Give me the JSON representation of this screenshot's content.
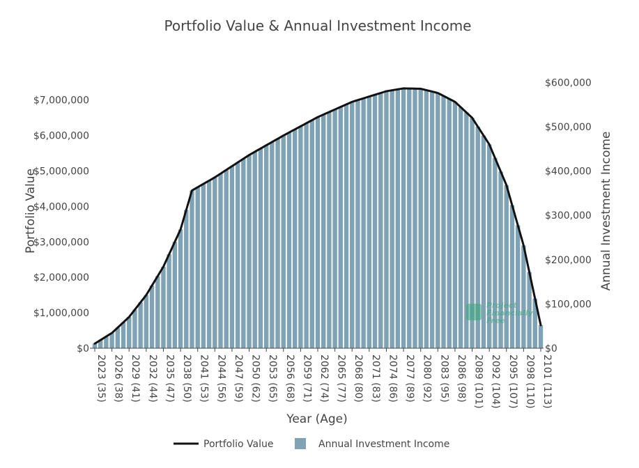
{
  "chart_data": {
    "type": "bar+line",
    "title": "Portfolio Value & Annual Investment Income",
    "xlabel": "Year (Age)",
    "ylabel_left": "Portfolio Value",
    "ylabel_right": "Annual Investment Income",
    "x_start_year": 2023,
    "x_end_year": 2101,
    "start_age": 35,
    "x_tick_labels": [
      "2023 (35)",
      "2026 (38)",
      "2029 (41)",
      "2032 (44)",
      "2035 (47)",
      "2038 (50)",
      "2041 (53)",
      "2044 (56)",
      "2047 (59)",
      "2050 (62)",
      "2053 (65)",
      "2056 (68)",
      "2059 (71)",
      "2062 (74)",
      "2065 (77)",
      "2068 (80)",
      "2071 (83)",
      "2074 (86)",
      "2077 (89)",
      "2080 (92)",
      "2083 (95)",
      "2086 (98)",
      "2089 (101)",
      "2092 (104)",
      "2095 (107)",
      "2098 (110)",
      "2101 (113)"
    ],
    "y_left_ticks": [
      "$0",
      "$1,000,000",
      "$2,000,000",
      "$3,000,000",
      "$4,000,000",
      "$5,000,000",
      "$6,000,000",
      "$7,000,000"
    ],
    "y_right_ticks": [
      "$0",
      "$100,000",
      "$200,000",
      "$300,000",
      "$400,000",
      "$500,000",
      "$600,000"
    ],
    "y_left_range": [
      0,
      7500000
    ],
    "y_right_range": [
      0,
      600000
    ],
    "series": [
      {
        "name": "Portfolio Value",
        "kind": "line",
        "axis": "left",
        "color": "#111111",
        "points": [
          [
            2023,
            130000
          ],
          [
            2026,
            430000
          ],
          [
            2029,
            880000
          ],
          [
            2032,
            1500000
          ],
          [
            2035,
            2300000
          ],
          [
            2038,
            3350000
          ],
          [
            2040,
            4450000
          ],
          [
            2044,
            4820000
          ],
          [
            2050,
            5450000
          ],
          [
            2056,
            6000000
          ],
          [
            2062,
            6520000
          ],
          [
            2068,
            6950000
          ],
          [
            2074,
            7250000
          ],
          [
            2077,
            7330000
          ],
          [
            2080,
            7320000
          ],
          [
            2083,
            7200000
          ],
          [
            2086,
            6950000
          ],
          [
            2089,
            6500000
          ],
          [
            2092,
            5750000
          ],
          [
            2095,
            4600000
          ],
          [
            2098,
            2900000
          ],
          [
            2101,
            650000
          ]
        ]
      },
      {
        "name": "Annual Investment Income",
        "kind": "bar",
        "axis": "right",
        "color": "#7fa3b5",
        "values_note": "bars follow the portfolio value curve; $7,000,000 ≈ $560,000 income"
      }
    ],
    "legend": [
      {
        "label": "Portfolio Value",
        "type": "line",
        "color": "#111111"
      },
      {
        "label": "Annual Investment Income",
        "type": "box",
        "color": "#7fa3b5"
      }
    ],
    "legend_position": "bottom-center",
    "watermark": [
      "Project",
      "Financially",
      "Free"
    ]
  }
}
